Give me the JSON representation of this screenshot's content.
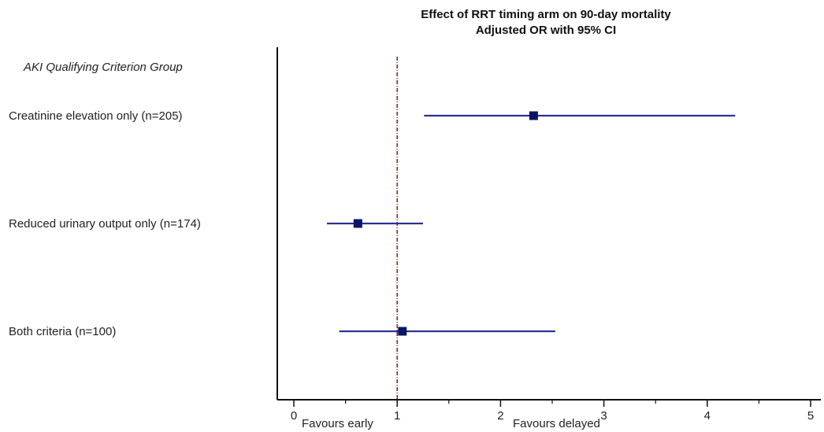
{
  "chart_data": {
    "type": "forest",
    "title_line1": "Effect of RRT timing arm on 90-day mortality",
    "title_line2": "Adjusted OR with 95% CI",
    "group_header": "AKI Qualifying Criterion Group",
    "rows": [
      {
        "label": "Creatinine elevation only (n=205)",
        "or": 2.32,
        "ci_low": 1.26,
        "ci_high": 4.27
      },
      {
        "label": "Reduced urinary output only (n=174)",
        "or": 0.62,
        "ci_low": 0.32,
        "ci_high": 1.25
      },
      {
        "label": "Both criteria (n=100)",
        "or": 1.05,
        "ci_low": 0.44,
        "ci_high": 2.53
      }
    ],
    "xlim": [
      0,
      5
    ],
    "xticks": [
      0,
      1,
      2,
      3,
      4,
      5
    ],
    "minor_ticks": [
      0.5,
      1.5,
      2.5,
      3.5,
      4.5
    ],
    "reference_line": 1,
    "annotation_left": "Favours early",
    "annotation_right": "Favours delayed",
    "colors": {
      "ci_line": "#2e3192",
      "marker": "#0b1467",
      "reference": "#8b1a1a",
      "axis": "#111111"
    }
  }
}
